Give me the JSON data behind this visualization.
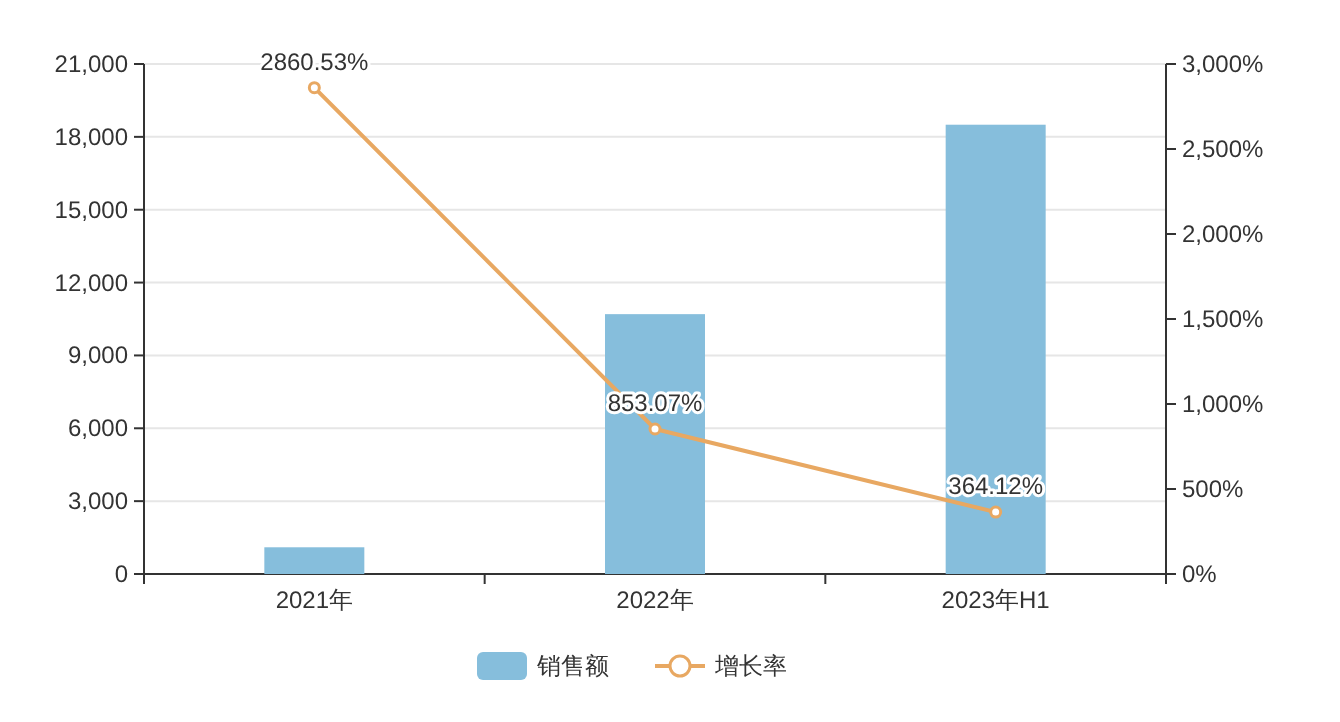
{
  "chart_data": {
    "type": "bar",
    "categories": [
      "2021年",
      "2022年",
      "2023年H1"
    ],
    "series": [
      {
        "name": "销售额",
        "color": "#86bedc",
        "values": [
          1100,
          10700,
          18500
        ]
      },
      {
        "name": "增长率",
        "type": "line",
        "axis": "y2",
        "color": "#e8a862",
        "values": [
          2860.53,
          853.07,
          364.12
        ],
        "value_labels": [
          "2860.53%",
          "853.07%",
          "364.12%"
        ]
      }
    ],
    "ylim": [
      0,
      21000
    ],
    "yticks": [
      0,
      {
        "value": 3000,
        "label": "3,000"
      },
      {
        "value": 6000,
        "label": "6,000"
      },
      {
        "value": 9000,
        "label": "9,000"
      },
      {
        "value": 12000,
        "label": "12,000"
      },
      {
        "value": 15000,
        "label": "15,000"
      },
      {
        "value": 18000,
        "label": "18,000"
      },
      {
        "value": 21000,
        "label": "21,000"
      }
    ],
    "y2lim": [
      0,
      3000
    ],
    "y2ticks": [
      {
        "value": 0,
        "label": "0%"
      },
      {
        "value": 500,
        "label": "500%"
      },
      {
        "value": 1000,
        "label": "1,000%"
      },
      {
        "value": 1500,
        "label": "1,500%"
      },
      {
        "value": 2000,
        "label": "2,000%"
      },
      {
        "value": 2500,
        "label": "2,500%"
      },
      {
        "value": 3000,
        "label": "3,000%"
      }
    ],
    "grid": "y",
    "legend": "bottom",
    "marker": "circle",
    "line_style": "solid"
  }
}
